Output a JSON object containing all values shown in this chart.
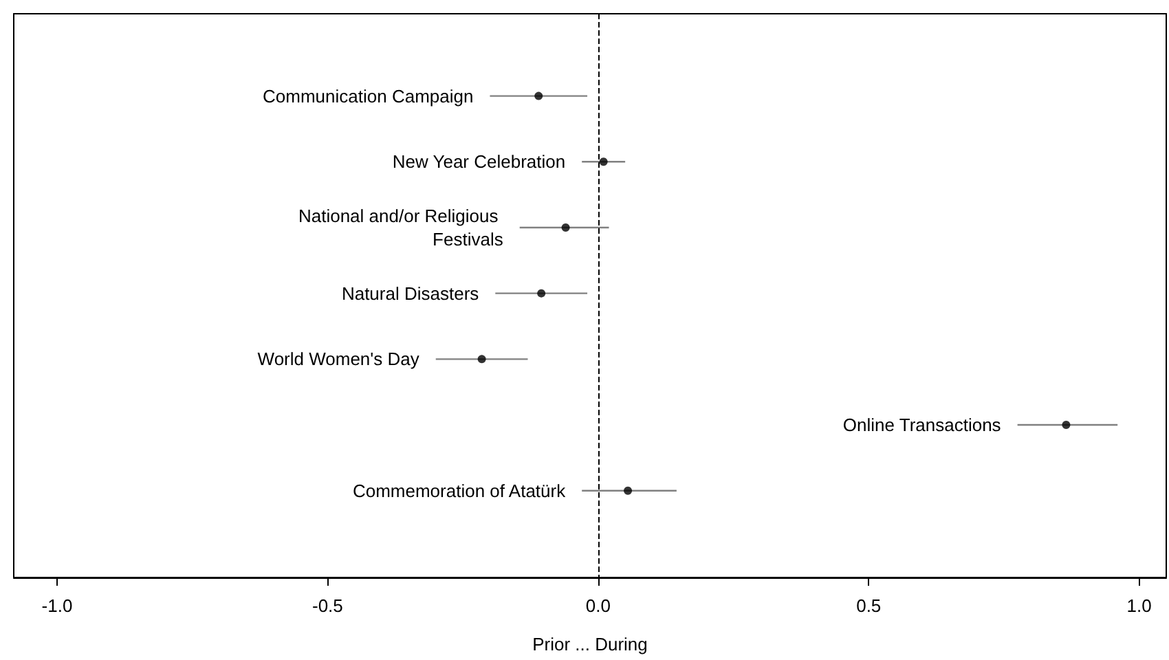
{
  "chart_data": {
    "type": "scatter",
    "orientation": "horizontal",
    "xlabel": "Prior ... During",
    "categories": [
      "Communication Campaign",
      "New Year Celebration",
      "National and/or Religious Festivals",
      "Natural Disasters",
      "World Women's Day",
      "Online Transactions",
      "Commemoration of Atatürk"
    ],
    "values": [
      -0.11,
      0.01,
      -0.06,
      -0.105,
      -0.215,
      0.865,
      0.055
    ],
    "errors": [
      [
        -0.2,
        -0.02
      ],
      [
        -0.03,
        0.05
      ],
      [
        -0.145,
        0.02
      ],
      [
        -0.19,
        -0.02
      ],
      [
        -0.3,
        -0.13
      ],
      [
        0.775,
        0.96
      ],
      [
        -0.03,
        0.145
      ]
    ],
    "color": "#000000",
    "xlim": [
      -1.08,
      1.05
    ],
    "xticks": [
      {
        "value": -1,
        "label": "-1.0"
      },
      -0.5,
      {
        "value": 0,
        "label": "0.0"
      },
      0.5,
      {
        "value": 1,
        "label": "1.0"
      }
    ],
    "ref_lines": [
      {
        "axis": "x",
        "value": 0,
        "color": "#000000",
        "line_style": "dashed"
      }
    ],
    "grid": false,
    "marker": "circle"
  }
}
